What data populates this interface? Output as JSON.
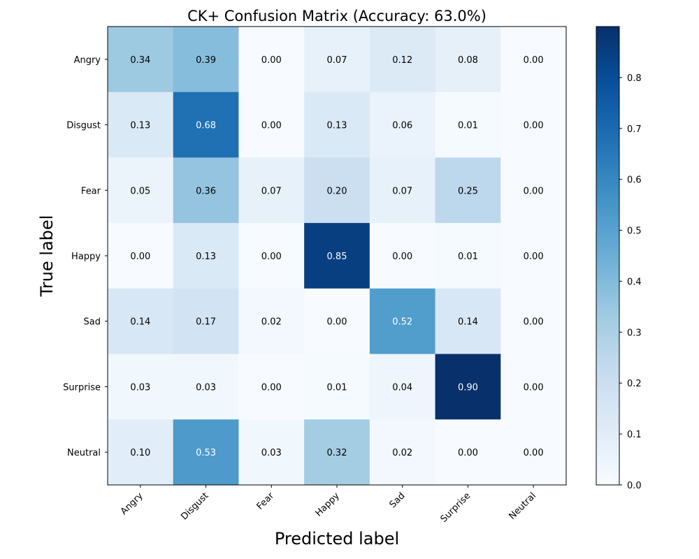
{
  "chart_data": {
    "type": "heatmap",
    "title": "CK+ Confusion Matrix (Accuracy: 63.0%)",
    "xlabel": "Predicted label",
    "ylabel": "True label",
    "x_categories": [
      "Angry",
      "Disgust",
      "Fear",
      "Happy",
      "Sad",
      "Surprise",
      "Neutral"
    ],
    "y_categories": [
      "Angry",
      "Disgust",
      "Fear",
      "Happy",
      "Sad",
      "Surprise",
      "Neutral"
    ],
    "values": [
      [
        0.34,
        0.39,
        0.0,
        0.07,
        0.12,
        0.08,
        0.0
      ],
      [
        0.13,
        0.68,
        0.0,
        0.13,
        0.06,
        0.01,
        0.0
      ],
      [
        0.05,
        0.36,
        0.07,
        0.2,
        0.07,
        0.25,
        0.0
      ],
      [
        0.0,
        0.13,
        0.0,
        0.85,
        0.0,
        0.01,
        0.0
      ],
      [
        0.14,
        0.17,
        0.02,
        0.0,
        0.52,
        0.14,
        0.0
      ],
      [
        0.03,
        0.03,
        0.0,
        0.01,
        0.04,
        0.9,
        0.0
      ],
      [
        0.1,
        0.53,
        0.03,
        0.32,
        0.02,
        0.0,
        0.0
      ]
    ],
    "colormap": "Blues",
    "vmin": 0.0,
    "vmax": 0.9,
    "colorbar_ticks": [
      "0.0",
      "0.1",
      "0.2",
      "0.3",
      "0.4",
      "0.5",
      "0.6",
      "0.7",
      "0.8"
    ],
    "legend": "colorbar-right",
    "grid": false
  }
}
